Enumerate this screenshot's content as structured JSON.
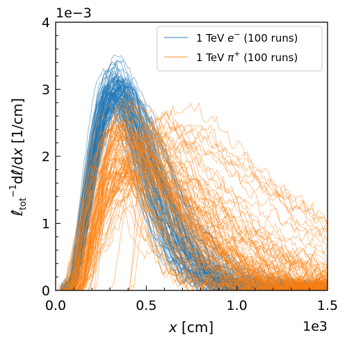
{
  "chart_data": {
    "type": "line",
    "xlabel": "x [cm]",
    "ylabel": "ℓ̂tot⁻¹ dℓ̂/dx [1/cm]",
    "ylabel_parts": {
      "l1": "ℓ̂",
      "sub": "tot",
      "sup": "−1",
      "d": "d",
      "l2": "ℓ̂",
      "slash": "/d",
      "x": "x",
      "unit": " [1/cm]"
    },
    "x_multiplier_label": "1e3",
    "y_multiplier_label": "1e−3",
    "xlim": [
      0,
      1500
    ],
    "ylim": [
      0,
      0.004
    ],
    "xticks": [
      0,
      500,
      1000,
      1500
    ],
    "xtick_labels": [
      "0.0",
      "0.5",
      "1.0",
      "1.5"
    ],
    "yticks": [
      0,
      0.001,
      0.002,
      0.003,
      0.004
    ],
    "ytick_labels": [
      "0",
      "1",
      "2",
      "3",
      "4"
    ],
    "grid": false,
    "legend_position": "top-right",
    "series": [
      {
        "name": "1 TeV e⁻ (100 runs)",
        "label_main": "1 TeV ",
        "label_particle": "e",
        "label_sup": "−",
        "label_tail": " (100 runs)",
        "color": "#1f77b4",
        "runs": 100,
        "peak_x_approx": 330,
        "peak_y_approx": 0.003
      },
      {
        "name": "1 TeV π⁺ (100 runs)",
        "label_main": "1 TeV ",
        "label_particle": "π",
        "label_sup": "+",
        "label_tail": " (100 runs)",
        "color": "#ff7f0e",
        "runs": 100,
        "peak_x_approx": 380,
        "peak_y_approx": 0.0026
      }
    ]
  }
}
